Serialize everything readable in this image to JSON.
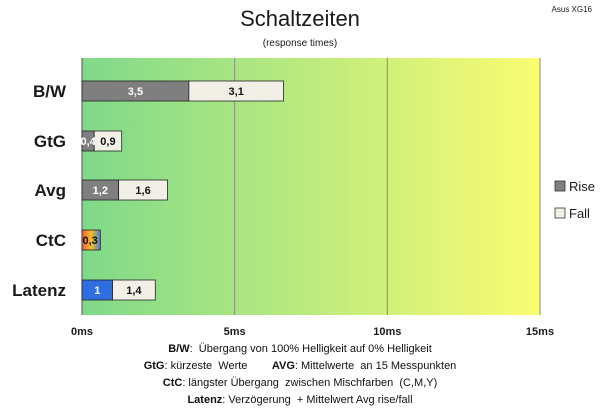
{
  "title": "Schaltzeiten",
  "subtitle": "(response times)",
  "tag": "Asus XG16",
  "chart_data": {
    "type": "bar",
    "orientation": "horizontal",
    "stacked": true,
    "categories": [
      "B/W",
      "GtG",
      "Avg",
      "CtC",
      "Latenz"
    ],
    "series": [
      {
        "name": "Rise",
        "values": [
          3.5,
          0.4,
          1.2,
          0.3,
          1
        ],
        "labels": [
          "3,5",
          "0,4",
          "1,2",
          "0,3",
          "1"
        ]
      },
      {
        "name": "Fall",
        "values": [
          3.1,
          0.9,
          1.6,
          0.3,
          1.4
        ],
        "labels": [
          "3,1",
          "0,9",
          "1,6",
          "",
          "1,4"
        ]
      }
    ],
    "xlim": [
      0,
      15
    ],
    "xticks": [
      "0ms",
      "5ms",
      "10ms",
      "15ms"
    ],
    "xtick_values": [
      0,
      5,
      10,
      15
    ],
    "background_gradient": [
      "#7fd98a",
      "#fbfc72"
    ],
    "colors": {
      "rise": "#7f7f7f",
      "fall": "#f2f0e6",
      "latenz_rise": "#2f6ee0"
    },
    "legend_position": "right"
  },
  "footer": [
    {
      "key": "B/W",
      "text": ":  Übergang von 100% Helligkeit auf 0% Helligkeit"
    },
    {
      "key": "GtG",
      "text": ": kürzeste  Werte        ",
      "key2": "AVG",
      "text2": ": Mittelwerte  an 15 Messpunkten"
    },
    {
      "key": "CtC",
      "text": ": längster Übergang  zwischen Mischfarben  (C,M,Y)"
    },
    {
      "key": "Latenz",
      "text": ": Verzögerung  + Mittelwert Avg rise/fall"
    }
  ]
}
